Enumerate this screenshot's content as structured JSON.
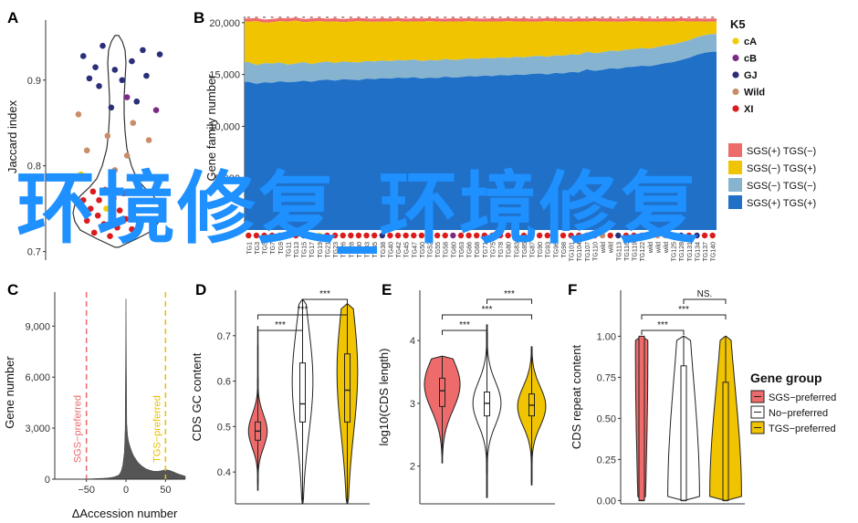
{
  "panels": {
    "a": "A",
    "b": "B",
    "c": "C",
    "d": "D",
    "e": "E",
    "f": "F"
  },
  "watermark": "环境修复_环境修复",
  "chart_data": [
    {
      "panel": "A",
      "type": "scatter",
      "ylabel": "Jaccard index",
      "yticks": [
        0.7,
        0.8,
        0.9
      ],
      "ylim": [
        0.69,
        0.97
      ],
      "legend_colors": {
        "cA": "#f2cc00",
        "cB": "#7b2a85",
        "GJ": "#2b2f7a",
        "Wild": "#c98d6a",
        "XI": "#dc1c1c"
      },
      "points": [
        {
          "x": 0.38,
          "y": 0.94,
          "g": "GJ"
        },
        {
          "x": 0.71,
          "y": 0.935,
          "g": "GJ"
        },
        {
          "x": 0.22,
          "y": 0.928,
          "g": "GJ"
        },
        {
          "x": 0.85,
          "y": 0.93,
          "g": "GJ"
        },
        {
          "x": 0.62,
          "y": 0.922,
          "g": "GJ"
        },
        {
          "x": 0.32,
          "y": 0.915,
          "g": "GJ"
        },
        {
          "x": 0.48,
          "y": 0.912,
          "g": "GJ"
        },
        {
          "x": 0.74,
          "y": 0.905,
          "g": "GJ"
        },
        {
          "x": 0.27,
          "y": 0.902,
          "g": "GJ"
        },
        {
          "x": 0.54,
          "y": 0.9,
          "g": "GJ"
        },
        {
          "x": 0.35,
          "y": 0.893,
          "g": "GJ"
        },
        {
          "x": 0.58,
          "y": 0.88,
          "g": "cB"
        },
        {
          "x": 0.66,
          "y": 0.875,
          "g": "GJ"
        },
        {
          "x": 0.45,
          "y": 0.868,
          "g": "GJ"
        },
        {
          "x": 0.82,
          "y": 0.865,
          "g": "cB"
        },
        {
          "x": 0.18,
          "y": 0.86,
          "g": "Wild"
        },
        {
          "x": 0.63,
          "y": 0.85,
          "g": "Wild"
        },
        {
          "x": 0.42,
          "y": 0.835,
          "g": "Wild"
        },
        {
          "x": 0.76,
          "y": 0.83,
          "g": "Wild"
        },
        {
          "x": 0.25,
          "y": 0.818,
          "g": "Wild"
        },
        {
          "x": 0.58,
          "y": 0.812,
          "g": "Wild"
        },
        {
          "x": 0.2,
          "y": 0.79,
          "g": "cA"
        },
        {
          "x": 0.48,
          "y": 0.795,
          "g": "Wild"
        },
        {
          "x": 0.7,
          "y": 0.785,
          "g": "cA"
        },
        {
          "x": 0.3,
          "y": 0.77,
          "g": "XI"
        },
        {
          "x": 0.4,
          "y": 0.772,
          "g": "XI"
        },
        {
          "x": 0.55,
          "y": 0.768,
          "g": "XI"
        },
        {
          "x": 0.22,
          "y": 0.76,
          "g": "XI"
        },
        {
          "x": 0.35,
          "y": 0.76,
          "g": "XI"
        },
        {
          "x": 0.47,
          "y": 0.762,
          "g": "XI"
        },
        {
          "x": 0.63,
          "y": 0.758,
          "g": "XI"
        },
        {
          "x": 0.28,
          "y": 0.75,
          "g": "XI"
        },
        {
          "x": 0.41,
          "y": 0.75,
          "g": "cA"
        },
        {
          "x": 0.52,
          "y": 0.748,
          "g": "XI"
        },
        {
          "x": 0.68,
          "y": 0.748,
          "g": "XI"
        },
        {
          "x": 0.34,
          "y": 0.742,
          "g": "XI"
        },
        {
          "x": 0.45,
          "y": 0.74,
          "g": "XI"
        },
        {
          "x": 0.57,
          "y": 0.738,
          "g": "XI"
        },
        {
          "x": 0.25,
          "y": 0.736,
          "g": "XI"
        },
        {
          "x": 0.39,
          "y": 0.732,
          "g": "XI"
        },
        {
          "x": 0.5,
          "y": 0.728,
          "g": "XI"
        },
        {
          "x": 0.62,
          "y": 0.726,
          "g": "XI"
        },
        {
          "x": 0.31,
          "y": 0.722,
          "g": "XI"
        },
        {
          "x": 0.44,
          "y": 0.718,
          "g": "XI"
        }
      ]
    },
    {
      "panel": "B",
      "type": "area",
      "ylabel": "Gene family number",
      "yticks": [
        5000,
        10000,
        15000,
        20000
      ],
      "ylim": [
        0,
        20600
      ],
      "total": [
        20400,
        20450,
        20300,
        20350,
        20450,
        20400,
        20500,
        20350,
        20400,
        20450,
        20380,
        20420,
        20350,
        20400,
        20450,
        20400,
        20380,
        20420,
        20400,
        20450,
        20380,
        20420,
        20400,
        20450,
        20400,
        20380,
        20420,
        20400,
        20450,
        20400,
        20380,
        20420,
        20400,
        20450,
        20400,
        20420,
        20380,
        20400,
        20450,
        20420,
        20400,
        20380,
        20420,
        20400,
        20450,
        20400,
        20420,
        20380,
        20400,
        20450,
        20420,
        20400,
        20380,
        20420,
        20400,
        20450,
        20400,
        20420,
        20380,
        20400
      ],
      "blue": [
        14300,
        14100,
        14250,
        14200,
        14350,
        14250,
        14300,
        14400,
        14300,
        14450,
        14500,
        14400,
        14550,
        14500,
        14450,
        14600,
        14550,
        14650,
        14600,
        14700,
        14650,
        14750,
        14600,
        14700,
        14650,
        14800,
        14700,
        14750,
        14850,
        14800,
        14900,
        14850,
        14950,
        14900,
        15000,
        14950,
        15050,
        15100,
        15000,
        15150,
        15100,
        15250,
        15200,
        15500,
        15350,
        15450,
        15600,
        15550,
        15700,
        15750,
        15850,
        15800,
        15950,
        16100,
        16200,
        16400,
        16600,
        16900,
        17100,
        17200
      ],
      "lightblue": [
        16200,
        15900,
        16100,
        16050,
        16150,
        15950,
        16050,
        16200,
        16000,
        16150,
        16250,
        16100,
        16250,
        16200,
        16150,
        16300,
        16250,
        16350,
        16300,
        16400,
        16350,
        16450,
        16300,
        16400,
        16350,
        16500,
        16400,
        16450,
        16550,
        16500,
        16600,
        16550,
        16650,
        16600,
        16700,
        16650,
        16750,
        16800,
        16700,
        16850,
        16800,
        16950,
        16900,
        17200,
        17050,
        17150,
        17300,
        17250,
        17400,
        17450,
        17550,
        17500,
        17650,
        17800,
        17900,
        18100,
        18300,
        18600,
        18800,
        18900
      ],
      "yellow": [
        20100,
        20150,
        20000,
        20050,
        20150,
        20100,
        20200,
        20050,
        20100,
        20150,
        20080,
        20120,
        20050,
        20100,
        20150,
        20100,
        20080,
        20120,
        20100,
        20150,
        20080,
        20120,
        20100,
        20150,
        20100,
        20080,
        20120,
        20100,
        20150,
        20100,
        20080,
        20120,
        20100,
        20150,
        20100,
        20120,
        20080,
        20100,
        20150,
        20120,
        20100,
        20080,
        20120,
        20100,
        20150,
        20100,
        20120,
        20080,
        20100,
        20150,
        20120,
        20100,
        20080,
        20120,
        20100,
        20150,
        20100,
        20120,
        20080,
        20100
      ],
      "dot_groups": [
        "XI",
        "XI",
        "XI",
        "XI",
        "XI",
        "XI",
        "XI",
        "GJ",
        "XI",
        "cA",
        "XI",
        "XI",
        "XI",
        "XI",
        "XI",
        "XI",
        "XI",
        "GJ",
        "XI",
        "XI",
        "XI",
        "XI",
        "XI",
        "XI",
        "XI",
        "XI",
        "cB",
        "XI",
        "XI",
        "XI",
        "XI",
        "XI",
        "XI",
        "XI",
        "cA",
        "XI",
        "XI",
        "XI",
        "XI",
        "XI",
        "XI",
        "XI",
        "XI",
        "XI",
        "XI",
        "Wild",
        "XI",
        "GJ",
        "XI",
        "XI",
        "XI",
        "Wild",
        "Wild",
        "Wild",
        "Wild",
        "GJ",
        "XI",
        "GJ",
        "XI",
        "XI"
      ],
      "xtick_labels": [
        "TG1",
        "TG3",
        "TG5",
        "TG7",
        "TG9",
        "TG11",
        "TG13",
        "TG15",
        "TG17",
        "TG19",
        "TG21",
        "TG23",
        "TG26",
        "TG28",
        "TG30",
        "TG33",
        "TG35",
        "TG38",
        "TG40",
        "TG42",
        "TG45",
        "TG47",
        "TG50",
        "TG52",
        "TG55",
        "TG58",
        "TG60",
        "TG63",
        "TG66",
        "TG68",
        "TG71",
        "TG75",
        "TG78",
        "TG80",
        "TG83",
        "TG85",
        "TG87",
        "TG90",
        "TG93",
        "TG96",
        "TG98",
        "TG101",
        "TG104",
        "TG107",
        "TG110",
        "wild",
        "wild",
        "TG113",
        "TG116",
        "TG119",
        "TG122",
        "wild",
        "wild",
        "wild",
        "TG125",
        "TG128",
        "TG131",
        "TG134",
        "TG137",
        "TG140"
      ],
      "legend_k5": {
        "title": "K5",
        "items": [
          "cA",
          "cB",
          "GJ",
          "Wild",
          "XI"
        ]
      },
      "legend_tgs": [
        "SGS(+) TGS(−)",
        "SGS(−) TGS(+)",
        "SGS(−) TGS(−)",
        "SGS(+) TGS(+)"
      ],
      "tgs_colors": [
        "#ee6b6b",
        "#f0c400",
        "#86b4d0",
        "#2070c8"
      ]
    },
    {
      "panel": "C",
      "type": "area",
      "ylabel": "Gene number",
      "xlabel": "ΔAccession number",
      "yticks": [
        0,
        3000,
        6000,
        9000
      ],
      "xticks": [
        -50,
        0,
        50
      ],
      "xlim": [
        -90,
        75
      ],
      "ylim": [
        0,
        11000
      ],
      "vlines": [
        {
          "x": -50,
          "label": "SGS−preferred",
          "color": "#e86a6a"
        },
        {
          "x": 50,
          "label": "TGS−preferred",
          "color": "#e8c000"
        }
      ],
      "x": [
        -90,
        -80,
        -70,
        -60,
        -55,
        -50,
        -45,
        -40,
        -35,
        -30,
        -25,
        -20,
        -15,
        -10,
        -8,
        -6,
        -4,
        -2,
        -1,
        0,
        1,
        2,
        3,
        4,
        6,
        8,
        10,
        15,
        20,
        25,
        30,
        35,
        40,
        45,
        50,
        55,
        60,
        65,
        70,
        75
      ],
      "y": [
        0,
        0,
        0,
        10,
        10,
        20,
        20,
        30,
        40,
        50,
        60,
        90,
        130,
        220,
        300,
        480,
        820,
        1600,
        3000,
        10600,
        3300,
        2600,
        2300,
        2100,
        1800,
        1550,
        1350,
        1000,
        780,
        620,
        530,
        470,
        460,
        500,
        560,
        520,
        430,
        330,
        250,
        180
      ]
    },
    {
      "panel": "D",
      "type": "violin",
      "ylabel": "CDS GC content",
      "yticks": [
        0.4,
        0.5,
        0.6,
        0.7
      ],
      "ylim": [
        0.33,
        0.8
      ],
      "groups": [
        {
          "name": "SGS−preferred",
          "color": "#ee6b6b",
          "min": 0.36,
          "max": 0.72,
          "q1": 0.47,
          "med": 0.49,
          "q3": 0.51,
          "mode": 0.49,
          "width": 0.5
        },
        {
          "name": "No−preferred",
          "color": "#ffffff",
          "min": 0.33,
          "max": 0.78,
          "q1": 0.51,
          "med": 0.55,
          "q3": 0.64,
          "mode": 0.6,
          "width": 0.55
        },
        {
          "name": "TGS−preferred",
          "color": "#f0c400",
          "min": 0.33,
          "max": 0.77,
          "q1": 0.51,
          "med": 0.58,
          "q3": 0.66,
          "mode": 0.62,
          "width": 0.55
        }
      ],
      "brackets": [
        {
          "a": 0,
          "b": 1,
          "label": "***",
          "lvl": 0
        },
        {
          "a": 0,
          "b": 2,
          "label": "***",
          "lvl": 1
        },
        {
          "a": 1,
          "b": 2,
          "label": "***",
          "lvl": 2
        }
      ]
    },
    {
      "panel": "E",
      "type": "violin",
      "ylabel": "log10(CDS length)",
      "yticks": [
        2,
        3,
        4
      ],
      "ylim": [
        1.4,
        4.8
      ],
      "groups": [
        {
          "name": "SGS−preferred",
          "color": "#ee6b6b",
          "min": 2.05,
          "max": 3.75,
          "q1": 2.95,
          "med": 3.2,
          "q3": 3.4,
          "mode": 3.3,
          "width": 0.95
        },
        {
          "name": "No−preferred",
          "color": "#ffffff",
          "min": 1.5,
          "max": 4.25,
          "q1": 2.8,
          "med": 3.0,
          "q3": 3.18,
          "mode": 3.0,
          "width": 0.75
        },
        {
          "name": "TGS−preferred",
          "color": "#f0c400",
          "min": 1.7,
          "max": 3.9,
          "q1": 2.8,
          "med": 2.97,
          "q3": 3.15,
          "mode": 2.95,
          "width": 0.75
        }
      ],
      "brackets": [
        {
          "a": 0,
          "b": 1,
          "label": "***",
          "lvl": 0
        },
        {
          "a": 0,
          "b": 2,
          "label": "***",
          "lvl": 1
        },
        {
          "a": 1,
          "b": 2,
          "label": "***",
          "lvl": 2
        }
      ]
    },
    {
      "panel": "F",
      "type": "violin",
      "ylabel": "CDS repeat content",
      "yticks": [
        0.0,
        0.25,
        0.5,
        0.75,
        1.0
      ],
      "ylim": [
        -0.02,
        1.28
      ],
      "groups": [
        {
          "name": "SGS−preferred",
          "color": "#ee6b6b",
          "min": 0.0,
          "max": 1.0,
          "q1": 0.0,
          "med": 0.0,
          "q3": 1.0,
          "mode": 0.9,
          "width": 0.35
        },
        {
          "name": "No−preferred",
          "color": "#ffffff",
          "min": 0.0,
          "max": 1.0,
          "q1": 0.0,
          "med": 0.0,
          "q3": 0.82,
          "mode": 0.02,
          "width": 0.9
        },
        {
          "name": "TGS−preferred",
          "color": "#f0c400",
          "min": 0.0,
          "max": 1.0,
          "q1": 0.0,
          "med": 0.0,
          "q3": 0.72,
          "mode": 0.03,
          "width": 0.9
        }
      ],
      "brackets": [
        {
          "a": 0,
          "b": 1,
          "label": "***",
          "lvl": 0
        },
        {
          "a": 0,
          "b": 2,
          "label": "***",
          "lvl": 1
        },
        {
          "a": 1,
          "b": 2,
          "label": "NS.",
          "lvl": 2
        }
      ],
      "legend": {
        "title": "Gene group",
        "items": [
          "SGS−preferred",
          "No−preferred",
          "TGS−preferred"
        ]
      }
    }
  ]
}
